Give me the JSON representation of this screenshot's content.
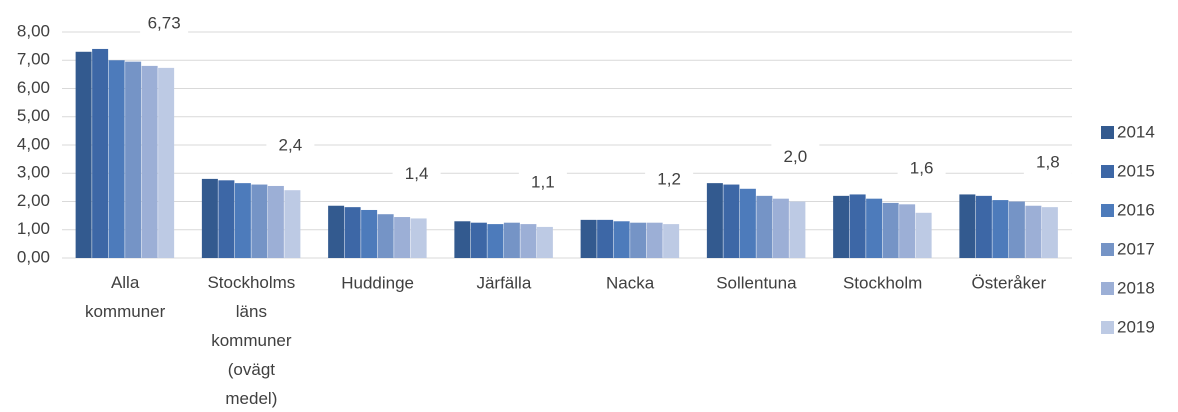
{
  "chart_data": {
    "type": "bar",
    "categories": [
      "Alla kommuner",
      "Stockholms läns kommuner (ovägt medel)",
      "Huddinge",
      "Järfälla",
      "Nacka",
      "Sollentuna",
      "Stockholm",
      "Österåker"
    ],
    "series": [
      {
        "name": "2014",
        "color": "#335a8f",
        "values": [
          7.3,
          2.8,
          1.85,
          1.3,
          1.35,
          2.65,
          2.2,
          2.25
        ]
      },
      {
        "name": "2015",
        "color": "#3d67a6",
        "values": [
          7.4,
          2.75,
          1.8,
          1.25,
          1.35,
          2.6,
          2.25,
          2.2
        ]
      },
      {
        "name": "2016",
        "color": "#4d7bbb",
        "values": [
          7.0,
          2.65,
          1.7,
          1.2,
          1.3,
          2.45,
          2.1,
          2.05
        ]
      },
      {
        "name": "2017",
        "color": "#7594c6",
        "values": [
          6.95,
          2.6,
          1.55,
          1.25,
          1.25,
          2.2,
          1.95,
          2.0
        ]
      },
      {
        "name": "2018",
        "color": "#9cafd6",
        "values": [
          6.8,
          2.55,
          1.45,
          1.2,
          1.25,
          2.1,
          1.9,
          1.85
        ]
      },
      {
        "name": "2019",
        "color": "#bdcae4",
        "values": [
          6.73,
          2.4,
          1.4,
          1.1,
          1.2,
          2.0,
          1.6,
          1.8
        ],
        "value_labels": [
          "6,73",
          "2,4",
          "1,4",
          "1,1",
          "1,2",
          "2,0",
          "1,6",
          "1,8"
        ]
      }
    ],
    "ylim": [
      0,
      8
    ],
    "yticks": [
      {
        "value": 0,
        "label": "0,00"
      },
      {
        "value": 1,
        "label": "1,00"
      },
      {
        "value": 2,
        "label": "2,00"
      },
      {
        "value": 3,
        "label": "3,00"
      },
      {
        "value": 4,
        "label": "4,00"
      },
      {
        "value": 5,
        "label": "5,00"
      },
      {
        "value": 6,
        "label": "6,00"
      },
      {
        "value": 7,
        "label": "7,00"
      },
      {
        "value": 8,
        "label": "8,00"
      }
    ],
    "grid": true,
    "legend": "right"
  }
}
